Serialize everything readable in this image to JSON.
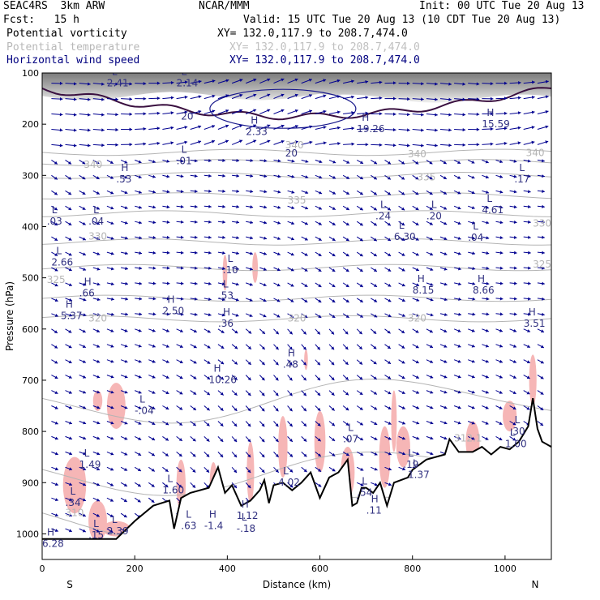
{
  "header": {
    "model": "SEAC4RS  3km ARW",
    "fcst": "Fcst:   15 h",
    "center": "NCAR/MMM",
    "init": "Init: 00 UTC Tue 20 Aug 13",
    "valid": "Valid: 15 UTC Tue 20 Aug 13 (10 CDT Tue 20 Aug 13)",
    "fields": [
      {
        "name": "Potential vorticity",
        "xy": "XY= 132.0,117.9 to 208.7,474.0",
        "color": "#000080"
      },
      {
        "name": "Potential temperature",
        "xy": "XY= 132.0,117.9 to 208.7,474.0",
        "color": "#b0b0b0"
      },
      {
        "name": "Horizontal wind speed",
        "xy": "XY= 132.0,117.9 to 208.7,474.0",
        "color": "#000080"
      }
    ],
    "name_color_black": "#000000"
  },
  "colors": {
    "wind": "#000090",
    "theta": "#b4b4b4",
    "pv": "#2b2b7a",
    "tropopause": "#3a1040",
    "pink": "#f6b6b6",
    "hilo": "#303080",
    "terrain": "#000000"
  },
  "chart_data": {
    "type": "cross-section",
    "xlabel": "Distance (km)",
    "ylabel": "Pressure (hPa)",
    "xlim": [
      0,
      1100
    ],
    "ylim": [
      100,
      1050
    ],
    "x_ticks": [
      0,
      200,
      400,
      600,
      800,
      1000
    ],
    "y_ticks": [
      100,
      200,
      300,
      400,
      500,
      600,
      700,
      800,
      900,
      1000
    ],
    "endpoints": {
      "left": "S",
      "right": "N"
    },
    "theta_labels": [
      {
        "v": "340",
        "x": 90,
        "p": 285
      },
      {
        "v": "335",
        "x": 530,
        "p": 355
      },
      {
        "v": "335",
        "x": 810,
        "p": 310
      },
      {
        "v": "330",
        "x": 100,
        "p": 425
      },
      {
        "v": "330",
        "x": 1060,
        "p": 400
      },
      {
        "v": "325",
        "x": 10,
        "p": 510
      },
      {
        "v": "325",
        "x": 1060,
        "p": 480
      },
      {
        "v": "320",
        "x": 100,
        "p": 585
      },
      {
        "v": "320",
        "x": 530,
        "p": 585
      },
      {
        "v": "320",
        "x": 790,
        "p": 585
      },
      {
        "v": "340",
        "x": 1045,
        "p": 262
      },
      {
        "v": "340",
        "x": 790,
        "p": 265
      },
      {
        "v": "340",
        "x": 525,
        "p": 247
      },
      {
        "v": "310",
        "x": 50,
        "p": 965
      },
      {
        "v": "312.1",
        "x": 890,
        "p": 820
      }
    ],
    "hilo": [
      {
        "t": "L",
        "v": "2.41",
        "x": 140,
        "p": 110
      },
      {
        "t": "L",
        "v": "2.14",
        "x": 290,
        "p": 110
      },
      {
        "t": "",
        "v": "20",
        "x": 300,
        "p": 175
      },
      {
        "t": "H",
        "v": "2.33",
        "x": 440,
        "p": 205
      },
      {
        "t": "H",
        "v": "19.26",
        "x": 680,
        "p": 200
      },
      {
        "t": "H",
        "v": "15.59",
        "x": 950,
        "p": 190
      },
      {
        "t": "",
        "v": "20",
        "x": 525,
        "p": 247
      },
      {
        "t": "L",
        "v": ".01",
        "x": 290,
        "p": 262
      },
      {
        "t": "H",
        "v": ".53",
        "x": 160,
        "p": 298
      },
      {
        "t": "L",
        "v": ".17",
        "x": 1020,
        "p": 298
      },
      {
        "t": "L",
        "v": ".03",
        "x": 10,
        "p": 380
      },
      {
        "t": "L",
        "v": ".04",
        "x": 100,
        "p": 380
      },
      {
        "t": "L",
        "v": ".24",
        "x": 720,
        "p": 370
      },
      {
        "t": "L",
        "v": ".20",
        "x": 830,
        "p": 370
      },
      {
        "t": "L",
        "v": "4.61",
        "x": 950,
        "p": 358
      },
      {
        "t": "L",
        "v": "6.30",
        "x": 760,
        "p": 410
      },
      {
        "t": "L",
        "v": ".04",
        "x": 920,
        "p": 412
      },
      {
        "t": "L",
        "v": "2.66",
        "x": 20,
        "p": 460
      },
      {
        "t": "L",
        "v": ".10",
        "x": 390,
        "p": 475
      },
      {
        "t": "H",
        "v": "8.15",
        "x": 800,
        "p": 515
      },
      {
        "t": "H",
        "v": "8.66",
        "x": 930,
        "p": 515
      },
      {
        "t": "H",
        "v": ".66",
        "x": 80,
        "p": 520
      },
      {
        "t": "L",
        "v": ".53",
        "x": 380,
        "p": 525
      },
      {
        "t": "H",
        "v": "2.50",
        "x": 260,
        "p": 555
      },
      {
        "t": "H",
        "v": "5.37",
        "x": 40,
        "p": 565
      },
      {
        "t": "H",
        "v": ".36",
        "x": 380,
        "p": 580
      },
      {
        "t": "H",
        "v": "3.51",
        "x": 1040,
        "p": 580
      },
      {
        "t": "H",
        "v": ".48",
        "x": 520,
        "p": 660
      },
      {
        "t": "H",
        "v": "10.26",
        "x": 360,
        "p": 690
      },
      {
        "t": "L",
        "v": "-.04",
        "x": 200,
        "p": 750
      },
      {
        "t": "L",
        "v": ".30",
        "x": 1010,
        "p": 790
      },
      {
        "t": "L",
        "v": ".07",
        "x": 650,
        "p": 805
      },
      {
        "t": "L",
        "v": "1.00",
        "x": 1000,
        "p": 815
      },
      {
        "t": "L",
        "v": "1.49",
        "x": 80,
        "p": 855
      },
      {
        "t": "L",
        "v": ".19",
        "x": 780,
        "p": 855
      },
      {
        "t": "L",
        "v": "1.37",
        "x": 790,
        "p": 875
      },
      {
        "t": "L",
        "v": "1.60",
        "x": 260,
        "p": 905
      },
      {
        "t": "L",
        "v": ".54",
        "x": 680,
        "p": 910
      },
      {
        "t": "L",
        "v": ".34",
        "x": 50,
        "p": 930
      },
      {
        "t": "H",
        "v": ".11",
        "x": 700,
        "p": 945
      },
      {
        "t": "H",
        "v": "1.12",
        "x": 420,
        "p": 955
      },
      {
        "t": "L",
        "v": "2.39",
        "x": 140,
        "p": 985
      },
      {
        "t": "H",
        "v": "-1.4",
        "x": 350,
        "p": 975
      },
      {
        "t": "L",
        "v": "-.18",
        "x": 420,
        "p": 980
      },
      {
        "t": "H",
        "v": "6.28",
        "x": 0,
        "p": 1010
      },
      {
        "t": "L",
        "v": ".15",
        "x": 100,
        "p": 993
      },
      {
        "t": "L",
        "v": ".63",
        "x": 300,
        "p": 975
      },
      {
        "t": "L",
        "v": "4.02",
        "x": 510,
        "p": 890
      }
    ],
    "terrain": [
      [
        0,
        1010
      ],
      [
        80,
        1010
      ],
      [
        160,
        1010
      ],
      [
        200,
        975
      ],
      [
        240,
        945
      ],
      [
        275,
        935
      ],
      [
        285,
        990
      ],
      [
        300,
        930
      ],
      [
        320,
        920
      ],
      [
        360,
        910
      ],
      [
        380,
        870
      ],
      [
        395,
        920
      ],
      [
        410,
        905
      ],
      [
        430,
        945
      ],
      [
        450,
        935
      ],
      [
        470,
        915
      ],
      [
        480,
        895
      ],
      [
        490,
        940
      ],
      [
        500,
        905
      ],
      [
        520,
        900
      ],
      [
        540,
        915
      ],
      [
        560,
        900
      ],
      [
        580,
        880
      ],
      [
        600,
        930
      ],
      [
        620,
        890
      ],
      [
        640,
        880
      ],
      [
        660,
        855
      ],
      [
        670,
        945
      ],
      [
        680,
        940
      ],
      [
        690,
        910
      ],
      [
        700,
        910
      ],
      [
        715,
        920
      ],
      [
        730,
        900
      ],
      [
        745,
        945
      ],
      [
        760,
        900
      ],
      [
        790,
        890
      ],
      [
        800,
        875
      ],
      [
        830,
        855
      ],
      [
        870,
        845
      ],
      [
        880,
        815
      ],
      [
        900,
        840
      ],
      [
        930,
        840
      ],
      [
        950,
        830
      ],
      [
        970,
        845
      ],
      [
        990,
        830
      ],
      [
        1010,
        835
      ],
      [
        1030,
        820
      ],
      [
        1050,
        790
      ],
      [
        1060,
        735
      ],
      [
        1070,
        795
      ],
      [
        1080,
        820
      ],
      [
        1100,
        830
      ]
    ]
  }
}
